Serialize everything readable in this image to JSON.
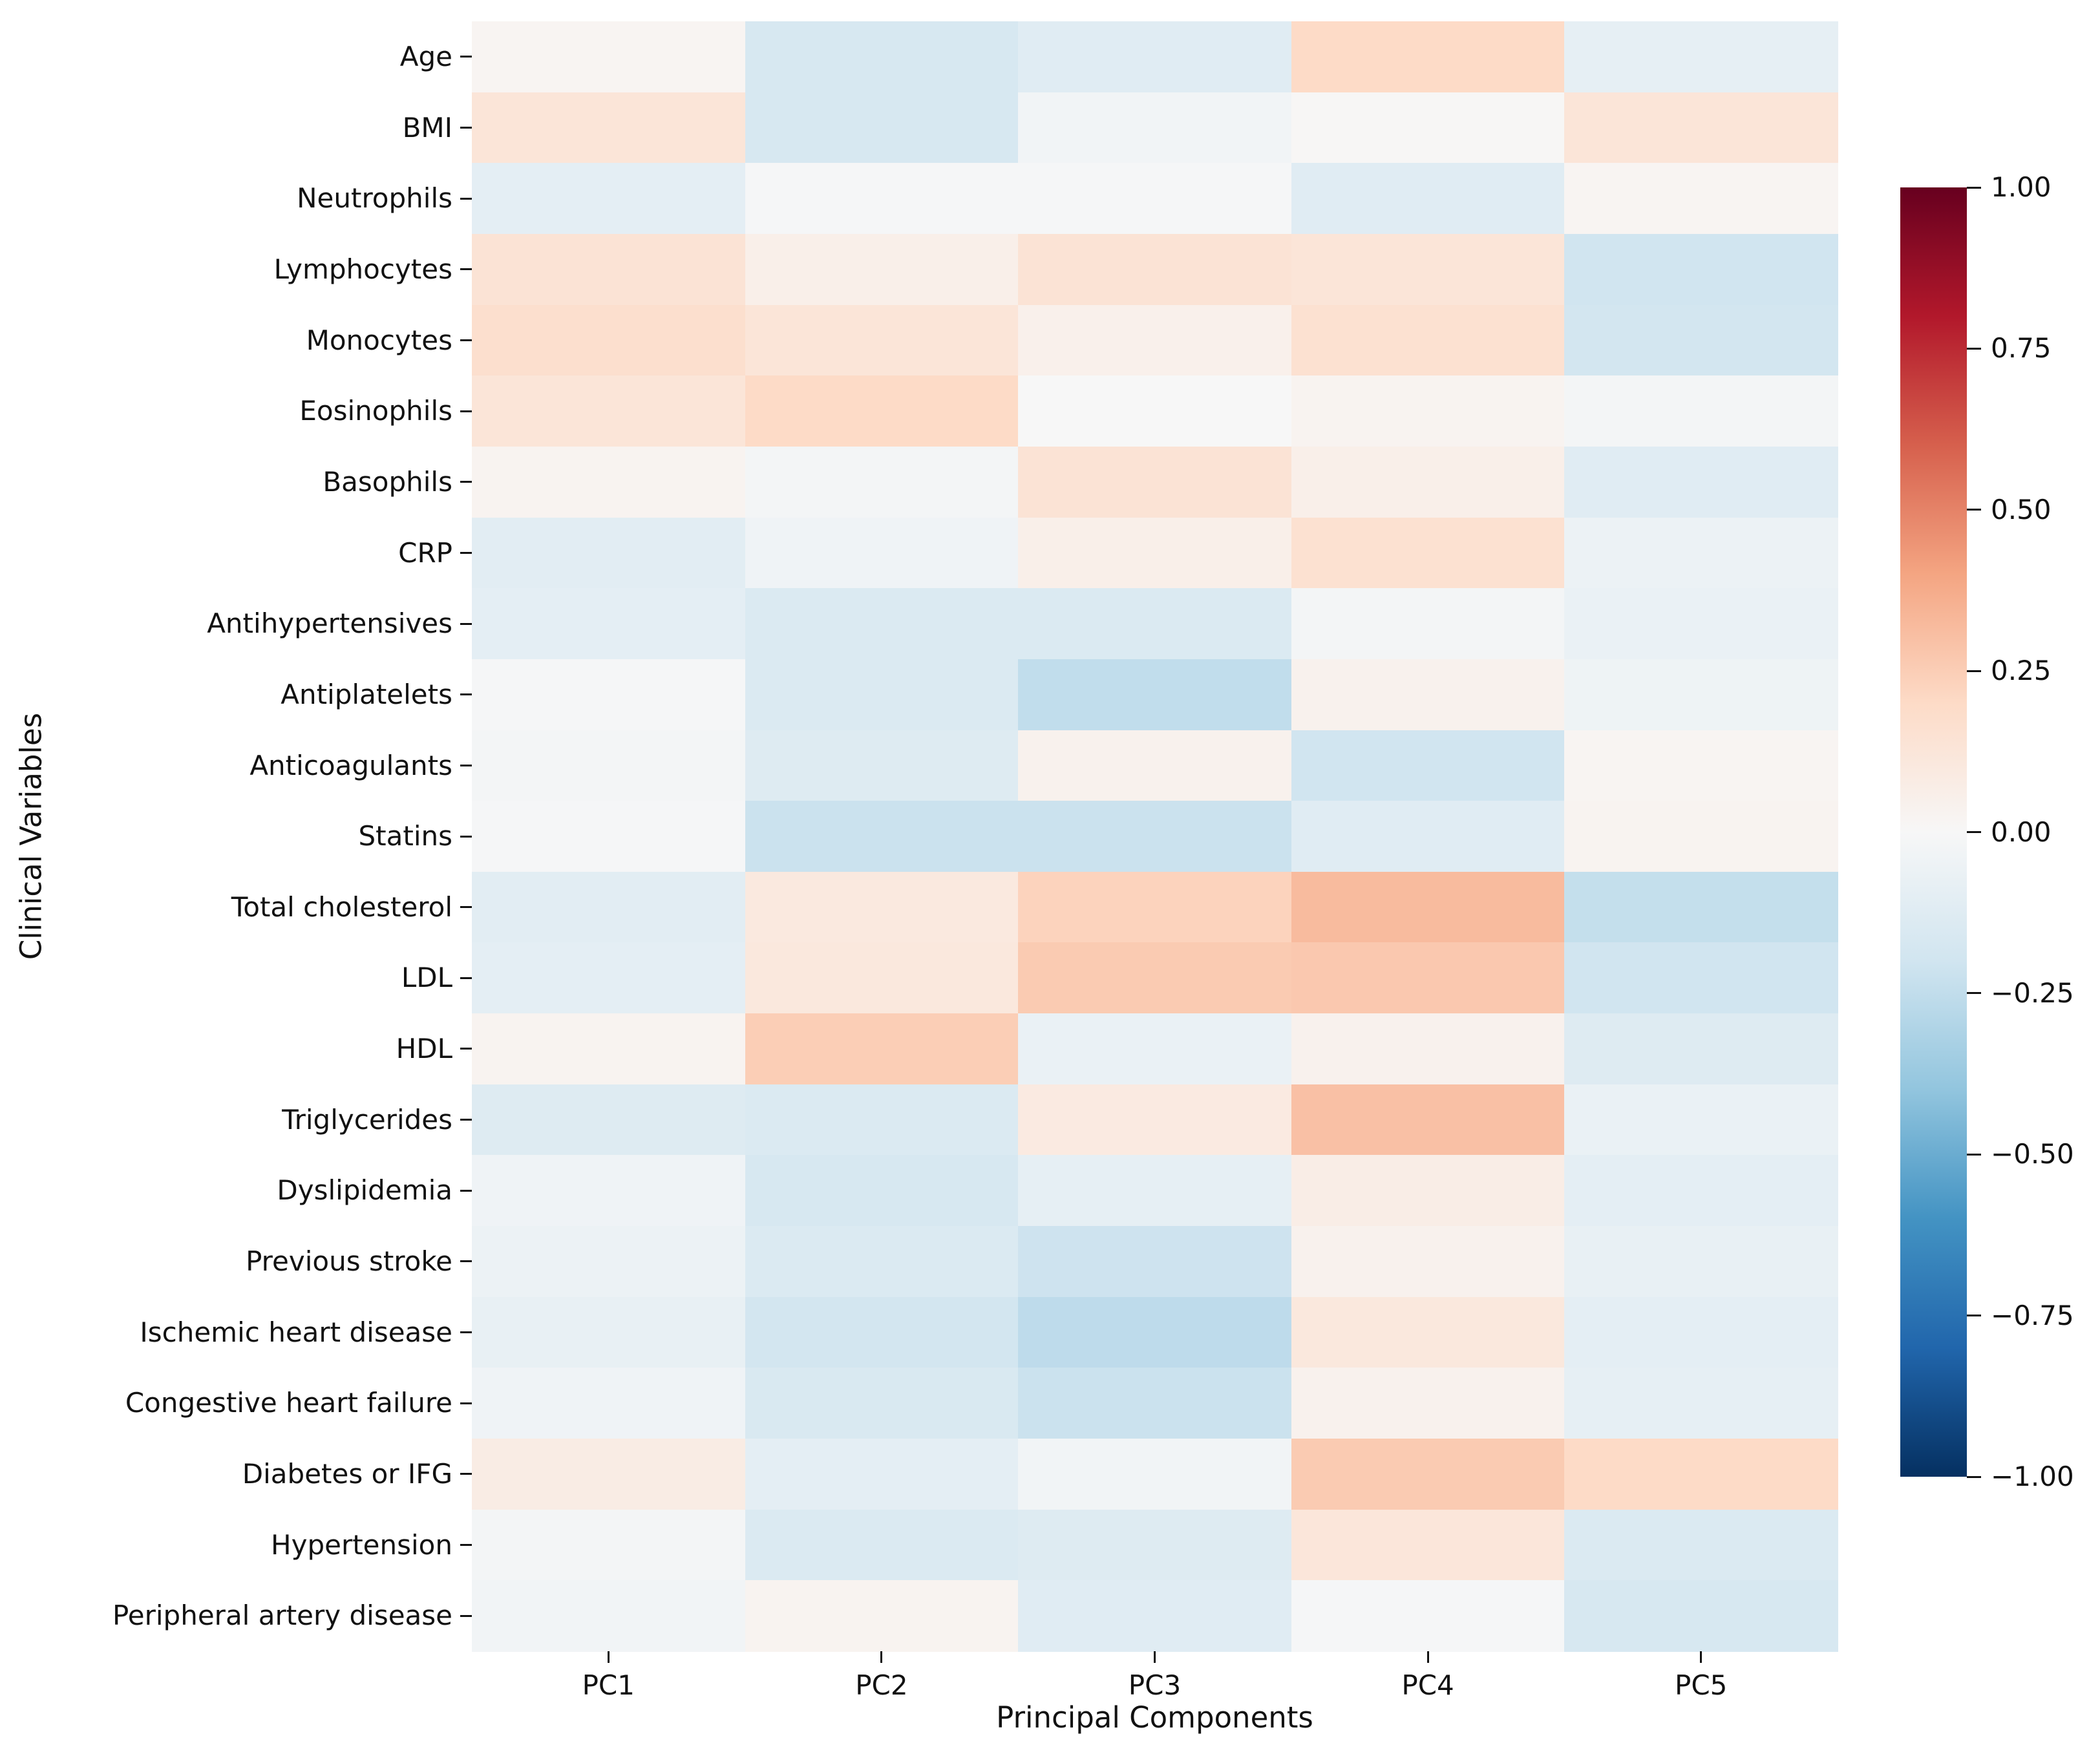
{
  "chart_data": {
    "type": "heatmap",
    "title": "",
    "xlabel": "Principal Components",
    "ylabel": "Clinical Variables",
    "columns": [
      "PC1",
      "PC2",
      "PC3",
      "PC4",
      "PC5"
    ],
    "rows": [
      "Age",
      "BMI",
      "Neutrophils",
      "Lymphocytes",
      "Monocytes",
      "Eosinophils",
      "Basophils",
      "CRP",
      "Antihypertensives",
      "Antiplatelets",
      "Anticoagulants",
      "Statins",
      "Total cholesterol",
      "LDL",
      "HDL",
      "Triglycerides",
      "Dyslipidemia",
      "Previous stroke",
      "Ischemic heart disease",
      "Congestive heart failure",
      "Diabetes or IFG",
      "Hypertension",
      "Peripheral artery disease"
    ],
    "values": [
      [
        0.02,
        -0.17,
        -0.12,
        0.2,
        -0.09
      ],
      [
        0.13,
        -0.17,
        -0.03,
        0.01,
        0.13
      ],
      [
        -0.1,
        -0.01,
        -0.01,
        -0.12,
        0.02
      ],
      [
        0.14,
        0.06,
        0.14,
        0.13,
        -0.2
      ],
      [
        0.17,
        0.13,
        0.05,
        0.16,
        -0.19
      ],
      [
        0.13,
        0.2,
        0.0,
        0.03,
        -0.02
      ],
      [
        0.03,
        -0.02,
        0.14,
        0.06,
        -0.12
      ],
      [
        -0.11,
        -0.04,
        0.06,
        0.16,
        -0.06
      ],
      [
        -0.1,
        -0.15,
        -0.15,
        -0.02,
        -0.07
      ],
      [
        -0.01,
        -0.15,
        -0.25,
        0.04,
        -0.05
      ],
      [
        -0.02,
        -0.13,
        0.04,
        -0.2,
        0.02
      ],
      [
        -0.01,
        -0.22,
        -0.22,
        -0.12,
        0.03
      ],
      [
        -0.11,
        0.1,
        0.23,
        0.32,
        -0.24
      ],
      [
        -0.1,
        0.11,
        0.26,
        0.27,
        -0.2
      ],
      [
        0.03,
        0.25,
        -0.07,
        0.04,
        -0.13
      ],
      [
        -0.13,
        -0.15,
        0.09,
        0.3,
        -0.07
      ],
      [
        -0.04,
        -0.17,
        -0.09,
        0.07,
        -0.1
      ],
      [
        -0.06,
        -0.15,
        -0.21,
        0.04,
        -0.08
      ],
      [
        -0.08,
        -0.19,
        -0.26,
        0.11,
        -0.1
      ],
      [
        -0.04,
        -0.16,
        -0.22,
        0.04,
        -0.09
      ],
      [
        0.08,
        -0.1,
        -0.03,
        0.26,
        0.2
      ],
      [
        -0.02,
        -0.15,
        -0.13,
        0.12,
        -0.15
      ],
      [
        -0.03,
        0.03,
        -0.12,
        -0.01,
        -0.17
      ]
    ],
    "colormap": "RdBu_r",
    "vmin": -1,
    "vmax": 1,
    "grid": false,
    "legend_position": "colorbar-right",
    "colorbar_ticks": [
      "1.00",
      "0.75",
      "0.50",
      "0.25",
      "0.00",
      "−0.25",
      "−0.50",
      "−0.75",
      "−1.00"
    ],
    "colorbar_tick_values": [
      1.0,
      0.75,
      0.5,
      0.25,
      0.0,
      -0.25,
      -0.5,
      -0.75,
      -1.0
    ]
  }
}
